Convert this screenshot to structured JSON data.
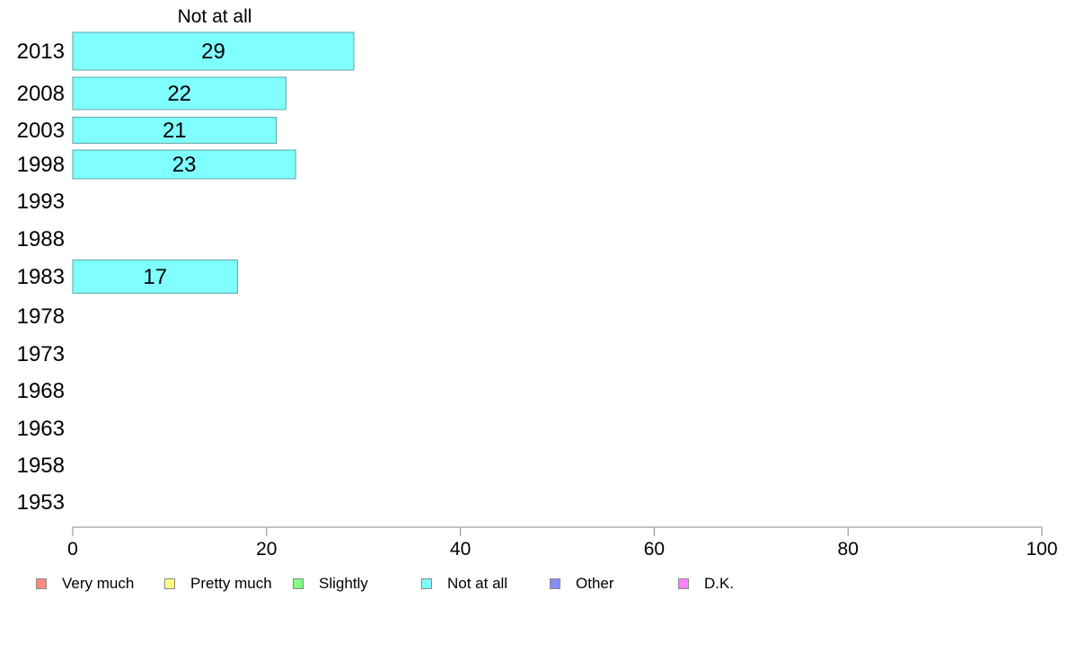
{
  "chart_data": {
    "type": "bar",
    "orientation": "horizontal",
    "title": "Not at all",
    "categories": [
      "2013",
      "2008",
      "2003",
      "1998",
      "1993",
      "1988",
      "1983",
      "1978",
      "1973",
      "1968",
      "1963",
      "1958",
      "1953"
    ],
    "series": [
      {
        "name": "Not at all",
        "values": [
          29,
          22,
          21,
          23,
          null,
          null,
          17,
          null,
          null,
          null,
          null,
          null,
          null
        ]
      }
    ],
    "data_labels": [
      "29",
      "22",
      "21",
      "23",
      "",
      "",
      "17",
      "",
      "",
      "",
      "",
      "",
      ""
    ],
    "xlim": [
      0,
      100
    ],
    "xticks": [
      0,
      20,
      40,
      60,
      80,
      100
    ],
    "grid": false,
    "legend": {
      "position": "bottom",
      "entries": [
        {
          "label": "Very much",
          "color": "#ff8a80"
        },
        {
          "label": "Pretty much",
          "color": "#ffff80"
        },
        {
          "label": "Slightly",
          "color": "#80ff80"
        },
        {
          "label": "Not at all",
          "color": "#80ffff"
        },
        {
          "label": "Other",
          "color": "#8a8aff"
        },
        {
          "label": "D.K.",
          "color": "#ff80ff"
        }
      ]
    },
    "bar_color": "#80ffff",
    "bar_border_color": "#5aa7a7"
  }
}
